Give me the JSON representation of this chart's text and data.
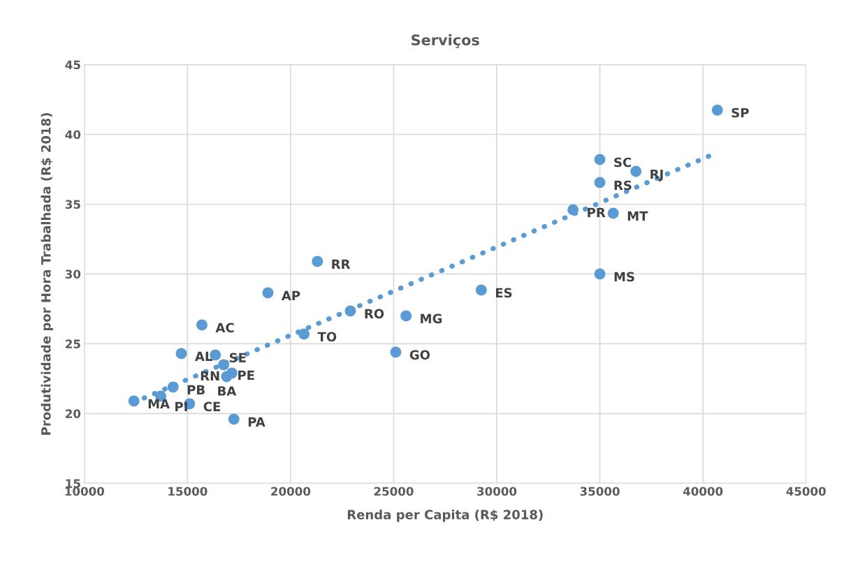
{
  "chart_data": {
    "type": "scatter",
    "title": "Serviços",
    "xlabel": "Renda per Capita (R$ 2018)",
    "ylabel": "Produtividade por Hora Trabalhada (R$ 2018)",
    "xlim": [
      10000,
      45000
    ],
    "xticks": [
      10000,
      15000,
      20000,
      25000,
      30000,
      35000,
      40000,
      45000
    ],
    "ylim": [
      15,
      45
    ],
    "yticks": [
      15,
      20,
      25,
      30,
      35,
      40,
      45
    ],
    "grid": true,
    "legend": false,
    "series": [
      {
        "type": "scatter",
        "marker": "circle",
        "color": "#5b9bd5",
        "x": [
          40700,
          35000,
          36750,
          35000,
          33700,
          35650,
          35000,
          21300,
          29250,
          18900,
          22900,
          25600,
          15700,
          20650,
          25100,
          14700,
          16350,
          16750,
          17150,
          16900,
          14300,
          13700,
          12400,
          15100,
          17250
        ],
        "values": [
          41.75,
          38.2,
          37.35,
          36.55,
          34.6,
          34.35,
          30.0,
          30.9,
          28.85,
          28.65,
          27.35,
          27.0,
          26.35,
          25.7,
          24.4,
          24.3,
          24.2,
          23.5,
          22.9,
          22.65,
          21.9,
          21.25,
          20.9,
          20.7,
          19.6
        ],
        "value_labels": [
          "SP",
          "SC",
          "RJ",
          "RS",
          "PR",
          "MT",
          "MS",
          "RR",
          "ES",
          "AP",
          "RO",
          "MG",
          "AC",
          "TO",
          "GO",
          "AL",
          "SE",
          "PE",
          "RN",
          "BA",
          "PB",
          "PI",
          "MA",
          "CE",
          "PA"
        ]
      },
      {
        "type": "line",
        "color": "#5b9bd5",
        "line_style": "dotted",
        "x": [
          12400,
          40300
        ],
        "values": [
          20.8,
          38.45
        ]
      }
    ]
  }
}
